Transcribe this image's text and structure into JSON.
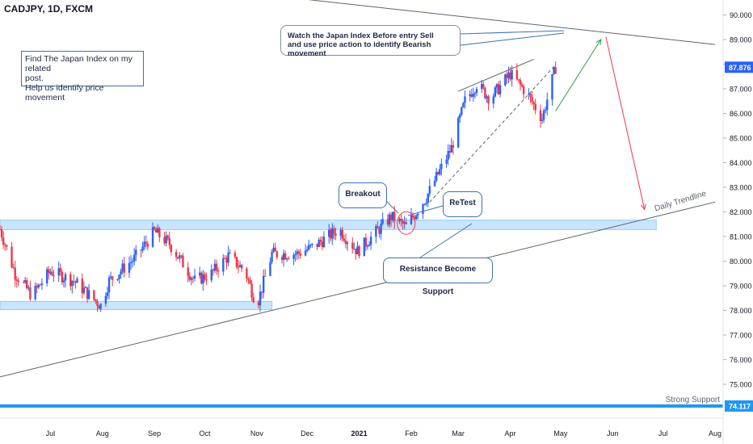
{
  "chart_data": {
    "type": "candlestick",
    "title": "CADJPY, 1D, FXCM",
    "y_axis": {
      "ticks": [
        "90.000",
        "89.000",
        "88.000",
        "87.000",
        "86.000",
        "85.000",
        "84.000",
        "83.000",
        "82.000",
        "81.000",
        "80.000",
        "79.000",
        "78.000",
        "77.000",
        "76.000",
        "75.000"
      ],
      "ylim": [
        73.5,
        90.5
      ],
      "side": "right"
    },
    "x_axis": {
      "ticks": [
        "Jul",
        "Aug",
        "Sep",
        "Oct",
        "Nov",
        "Dec",
        "2021",
        "Feb",
        "Mar",
        "Apr",
        "May",
        "Jun",
        "Jul",
        "Aug"
      ]
    },
    "price_series": {
      "name": "CADJPY",
      "approx_close_path": [
        [
          "2020-06-01",
          81.3
        ],
        [
          "2020-06-10",
          79.5
        ],
        [
          "2020-06-20",
          78.6
        ],
        [
          "2020-07-01",
          79.6
        ],
        [
          "2020-07-15",
          79.2
        ],
        [
          "2020-07-31",
          78.2
        ],
        [
          "2020-08-05",
          79.2
        ],
        [
          "2020-08-20",
          80.1
        ],
        [
          "2020-09-01",
          81.2
        ],
        [
          "2020-09-10",
          80.7
        ],
        [
          "2020-09-25",
          79.2
        ],
        [
          "2020-10-05",
          79.5
        ],
        [
          "2020-10-15",
          80.2
        ],
        [
          "2020-10-25",
          79.6
        ],
        [
          "2020-11-01",
          78.2
        ],
        [
          "2020-11-10",
          80.3
        ],
        [
          "2020-11-25",
          80.3
        ],
        [
          "2020-12-05",
          80.6
        ],
        [
          "2020-12-20",
          81.3
        ],
        [
          "2020-12-31",
          80.4
        ],
        [
          "2021-01-10",
          81.1
        ],
        [
          "2021-01-20",
          81.8
        ],
        [
          "2021-01-29",
          81.4
        ],
        [
          "2021-02-10",
          82.6
        ],
        [
          "2021-02-25",
          84.6
        ],
        [
          "2021-03-05",
          86.5
        ],
        [
          "2021-03-12",
          87.2
        ],
        [
          "2021-03-20",
          86.6
        ],
        [
          "2021-04-01",
          87.6
        ],
        [
          "2021-04-10",
          86.9
        ],
        [
          "2021-04-20",
          85.8
        ],
        [
          "2021-04-28",
          87.876
        ]
      ],
      "up_color": "#2962ff",
      "down_color": "#f23645"
    },
    "current_price": {
      "value": "87.876",
      "color": "#2962ff"
    },
    "levels": [
      {
        "name": "Strong Support",
        "value": "74.117",
        "color": "#2196f3"
      }
    ],
    "zones": [
      {
        "name": "resistance-support-zone",
        "from": 81.35,
        "to": 81.6,
        "color": "#bbdefb"
      },
      {
        "name": "lower-range-zone",
        "from": 78.1,
        "to": 78.3,
        "color": "#bbdefb"
      }
    ],
    "trendlines": [
      {
        "name": "Daily Trendline",
        "from": [
          "2020-06-01",
          75.3
        ],
        "to": [
          "2021-08-01",
          82.4
        ],
        "color": "#5d6373"
      },
      {
        "name": "upper-trendline",
        "from": [
          "2020-06-01",
          92.0
        ],
        "to": [
          "2021-08-01",
          88.8
        ],
        "color": "#5d6373"
      }
    ],
    "projections": [
      {
        "name": "bullish-projection",
        "from": [
          "2021-04-28",
          86.1
        ],
        "to": [
          "2021-05-25",
          89.0
        ],
        "color": "#2e9e49"
      },
      {
        "name": "bearish-projection",
        "from": [
          "2021-05-28",
          89.1
        ],
        "to": [
          "2021-06-20",
          82.1
        ],
        "color": "#f23645"
      }
    ],
    "legend": "none",
    "grid": false
  },
  "annotations": {
    "left_note": [
      "Find The Japan Index on my  related",
      "post.",
      "Help us identify price movement"
    ],
    "top_note": [
      "Watch the Japan Index Before entry Sell",
      "and use price action to identify Bearish movement"
    ],
    "breakout": "Breakout",
    "retest": "ReTest",
    "resistance_support": "Resistance Become Support",
    "trendline_label": "Daily Trendline",
    "support_label": "Strong Support"
  },
  "colors": {
    "axis_text": "#131722",
    "price_tag": "#2962ff",
    "support_tag": "#2196f3",
    "circle": "#f23645"
  }
}
